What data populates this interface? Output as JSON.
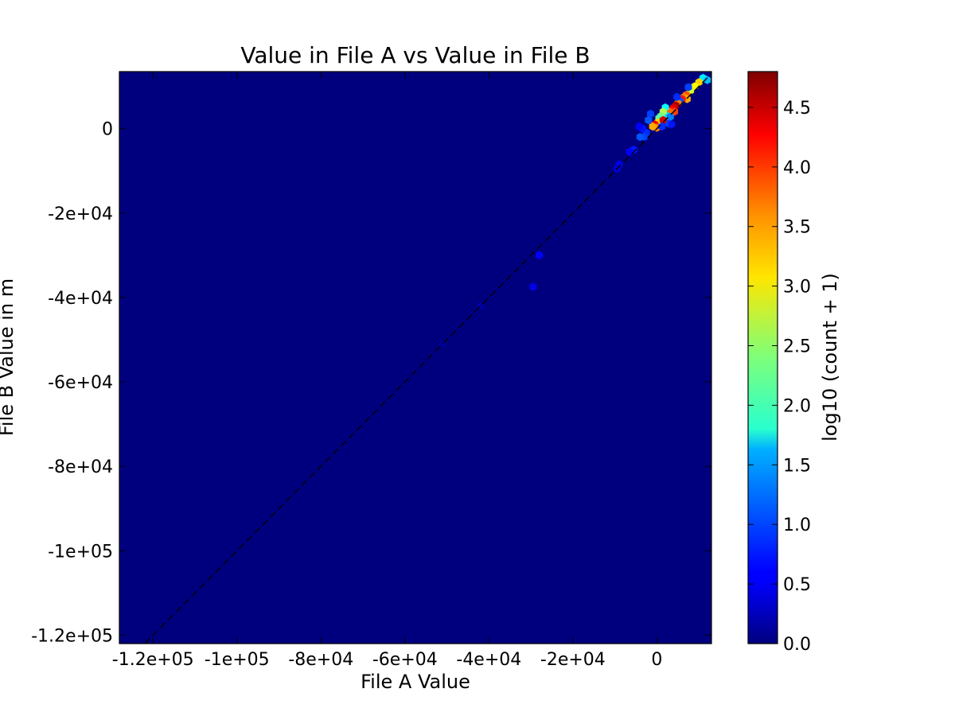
{
  "chart_data": {
    "type": "heatmap",
    "subtype": "hexbin",
    "title": "Value in File A vs Value in File B",
    "xlabel": "File A Value",
    "ylabel": "File B Value in m",
    "xlim": [
      -128000,
      13000
    ],
    "ylim": [
      -122000,
      13500
    ],
    "x_ticks": [
      {
        "value": -120000,
        "label": "-1.2e+05"
      },
      {
        "value": -100000,
        "label": "-1e+05"
      },
      {
        "value": -80000,
        "label": "-8e+04"
      },
      {
        "value": -60000,
        "label": "-6e+04"
      },
      {
        "value": -40000,
        "label": "-4e+04"
      },
      {
        "value": -20000,
        "label": "-2e+04"
      },
      {
        "value": 0,
        "label": "0"
      }
    ],
    "y_ticks": [
      {
        "value": 0,
        "label": "0"
      },
      {
        "value": -20000,
        "label": "-2e+04"
      },
      {
        "value": -40000,
        "label": "-4e+04"
      },
      {
        "value": -60000,
        "label": "-6e+04"
      },
      {
        "value": -80000,
        "label": "-8e+04"
      },
      {
        "value": -100000,
        "label": "-1e+05"
      },
      {
        "value": -120000,
        "label": "-1.2e+05"
      }
    ],
    "reference_line": {
      "style": "dashed",
      "color": "#000000",
      "equation": "y = x"
    },
    "colorbar": {
      "label": "log10 (count + 1)",
      "range": [
        0,
        4.8
      ],
      "colormap": "jet",
      "ticks": [
        {
          "value": 0.0,
          "label": "0.0"
        },
        {
          "value": 0.5,
          "label": "0.5"
        },
        {
          "value": 1.0,
          "label": "1.0"
        },
        {
          "value": 1.5,
          "label": "1.5"
        },
        {
          "value": 2.0,
          "label": "2.0"
        },
        {
          "value": 2.5,
          "label": "2.5"
        },
        {
          "value": 3.0,
          "label": "3.0"
        },
        {
          "value": 3.5,
          "label": "3.5"
        },
        {
          "value": 4.0,
          "label": "4.0"
        },
        {
          "value": 4.5,
          "label": "4.5"
        }
      ]
    },
    "background_value": 0.0,
    "bins": [
      {
        "x": 11000,
        "y": 12000,
        "value": 1.7
      },
      {
        "x": 12000,
        "y": 11500,
        "value": 1.5
      },
      {
        "x": 10000,
        "y": 11000,
        "value": 3.2
      },
      {
        "x": 9000,
        "y": 10000,
        "value": 3.0
      },
      {
        "x": 8000,
        "y": 9000,
        "value": 2.8
      },
      {
        "x": 7500,
        "y": 9800,
        "value": 0.9
      },
      {
        "x": 7000,
        "y": 8000,
        "value": 3.8
      },
      {
        "x": 6500,
        "y": 7500,
        "value": 3.6
      },
      {
        "x": 7200,
        "y": 7000,
        "value": 3.4
      },
      {
        "x": 6000,
        "y": 7000,
        "value": 4.1
      },
      {
        "x": 5500,
        "y": 6500,
        "value": 1.0
      },
      {
        "x": 5000,
        "y": 6000,
        "value": 3.6
      },
      {
        "x": 4800,
        "y": 7500,
        "value": 0.8
      },
      {
        "x": 4500,
        "y": 5500,
        "value": 4.6
      },
      {
        "x": 4000,
        "y": 5000,
        "value": 4.4
      },
      {
        "x": 3500,
        "y": 4500,
        "value": 4.2
      },
      {
        "x": 4200,
        "y": 4000,
        "value": 3.9
      },
      {
        "x": 3000,
        "y": 4000,
        "value": 3.7
      },
      {
        "x": 2500,
        "y": 3000,
        "value": 1.6
      },
      {
        "x": 3200,
        "y": 2800,
        "value": 1.2
      },
      {
        "x": 2800,
        "y": 1200,
        "value": 0.9
      },
      {
        "x": 3500,
        "y": 1000,
        "value": 0.7
      },
      {
        "x": 2000,
        "y": 5000,
        "value": 1.8
      },
      {
        "x": 1500,
        "y": 4000,
        "value": 2.6
      },
      {
        "x": 1000,
        "y": 3000,
        "value": 2.4
      },
      {
        "x": 500,
        "y": 2500,
        "value": 2.2
      },
      {
        "x": 200,
        "y": 1500,
        "value": 3.2
      },
      {
        "x": 1500,
        "y": 2000,
        "value": 4.4
      },
      {
        "x": -500,
        "y": 1000,
        "value": 4.3
      },
      {
        "x": 0,
        "y": 200,
        "value": 3.6
      },
      {
        "x": 1200,
        "y": 500,
        "value": 0.8
      },
      {
        "x": -1000,
        "y": 500,
        "value": 3.4
      },
      {
        "x": -2000,
        "y": 2000,
        "value": 1.0
      },
      {
        "x": -1500,
        "y": 3500,
        "value": 0.9
      },
      {
        "x": -2500,
        "y": -1000,
        "value": 0.8
      },
      {
        "x": -3500,
        "y": 0,
        "value": 0.7
      },
      {
        "x": -3000,
        "y": -2000,
        "value": 0.9
      },
      {
        "x": -4000,
        "y": -2000,
        "value": 1.0
      },
      {
        "x": -4200,
        "y": 500,
        "value": 0.6
      },
      {
        "x": -5500,
        "y": -5000,
        "value": 0.7
      },
      {
        "x": -6500,
        "y": -5500,
        "value": 0.6
      },
      {
        "x": -9000,
        "y": -8500,
        "value": 0.5
      },
      {
        "x": -9500,
        "y": -9500,
        "value": 0.4
      },
      {
        "x": -28000,
        "y": -30000,
        "value": 0.6
      },
      {
        "x": -29500,
        "y": -37500,
        "value": 0.5
      },
      {
        "x": -42000,
        "y": -42000,
        "value": 0.15
      },
      {
        "x": -51000,
        "y": -51000,
        "value": 0.1
      }
    ]
  }
}
